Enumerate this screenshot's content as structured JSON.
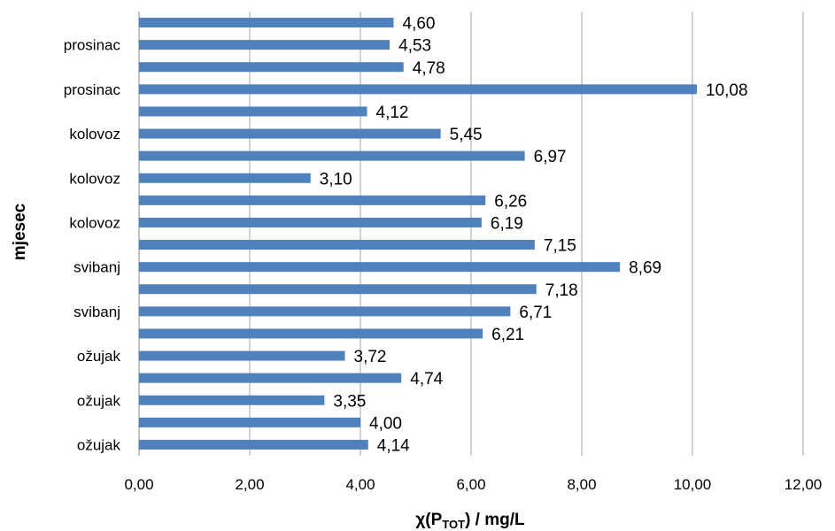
{
  "chart_data": {
    "type": "bar",
    "orientation": "horizontal",
    "color": "#4F81BD",
    "xlabel_main": "χ(P",
    "xlabel_sub": "TOT",
    "xlabel_rest": ") / mg/L",
    "ylabel": "mjesec",
    "xlim": [
      0,
      12
    ],
    "x_ticks": [
      "0,00",
      "2,00",
      "4,00",
      "6,00",
      "8,00",
      "10,00",
      "12,00"
    ],
    "grid": true,
    "categories": [
      "ožujak",
      "",
      "ožujak",
      "",
      "ožujak",
      "",
      "svibanj",
      "",
      "svibanj",
      "",
      "kolovoz",
      "",
      "kolovoz",
      "",
      "kolovoz",
      "",
      "prosinac",
      "",
      "prosinac",
      ""
    ],
    "values": [
      4.14,
      4.0,
      3.35,
      4.74,
      3.72,
      6.21,
      6.71,
      7.18,
      8.69,
      7.15,
      6.19,
      6.26,
      3.1,
      6.97,
      5.45,
      4.12,
      10.08,
      4.78,
      4.53,
      4.6
    ],
    "value_labels": [
      "4,14",
      "4,00",
      "3,35",
      "4,74",
      "3,72",
      "6,21",
      "6,71",
      "7,18",
      "8,69",
      "7,15",
      "6,19",
      "6,26",
      "3,10",
      "6,97",
      "5,45",
      "4,12",
      "10,08",
      "4,78",
      "4,53",
      "4,60"
    ]
  }
}
